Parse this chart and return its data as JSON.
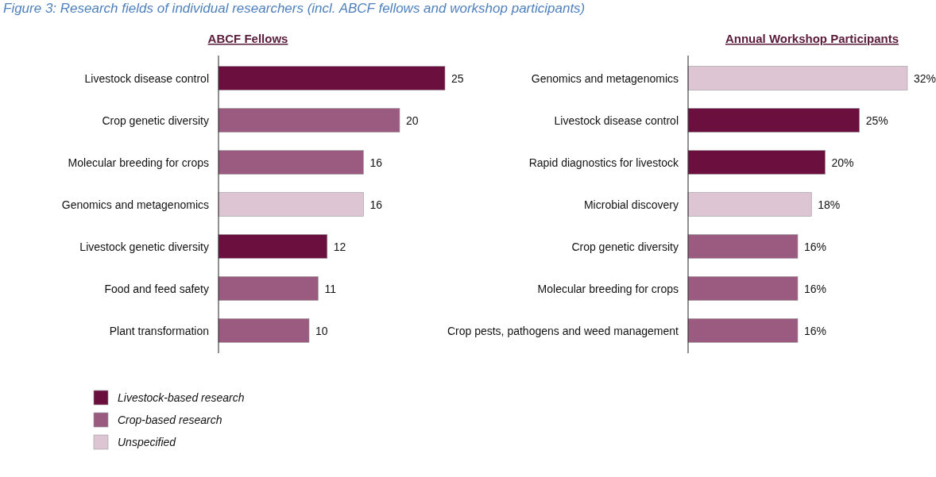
{
  "chart_data": [
    {
      "type": "bar",
      "orientation": "horizontal",
      "title": "ABCF Fellows",
      "annotations": [
        "Figure 3: Research fields of individual researchers (incl. ABCF fellows and workshop participants)"
      ],
      "categories": [
        "Livestock disease control",
        "Crop genetic diversity",
        "Molecular breeding for crops",
        "Genomics and metagenomics",
        "Livestock genetic diversity",
        "Food and feed safety",
        "Plant transformation"
      ],
      "series": [
        {
          "name": "Livestock-based research",
          "color": "#6b0f3e",
          "values": [
            25,
            null,
            null,
            null,
            12,
            null,
            null
          ]
        },
        {
          "name": "Crop-based research",
          "color": "#9b5a80",
          "values": [
            null,
            20,
            16,
            null,
            null,
            11,
            10
          ]
        },
        {
          "name": "Unspecified",
          "color": "#ddc5d3",
          "values": [
            null,
            null,
            null,
            16,
            null,
            null,
            null
          ]
        }
      ],
      "data_labels": true,
      "legend": "bottom left"
    },
    {
      "type": "bar",
      "orientation": "horizontal",
      "title": "Annual Workshop Participants",
      "categories": [
        "Genomics and metagenomics",
        "Livestock disease control",
        "Rapid diagnostics for livestock",
        "Microbial discovery",
        "Crop genetic diversity",
        "Molecular breeding for crops",
        "Crop pests, pathogens and weed management"
      ],
      "series": [
        {
          "color": "#6b0f3e",
          "values": [
            null,
            25,
            20,
            null,
            null,
            null,
            null
          ],
          "value_labels": [
            null,
            "25%",
            "20%",
            null,
            null,
            null,
            null
          ]
        },
        {
          "color": "#9b5a80",
          "values": [
            null,
            null,
            null,
            null,
            16,
            16,
            16
          ],
          "value_labels": [
            null,
            null,
            null,
            null,
            "16%",
            "16%",
            "16%"
          ]
        },
        {
          "color": "#ddc5d3",
          "values": [
            32,
            null,
            null,
            18,
            null,
            null,
            null
          ],
          "value_labels": [
            "32%",
            null,
            null,
            "18%",
            null,
            null,
            null
          ]
        }
      ]
    }
  ]
}
